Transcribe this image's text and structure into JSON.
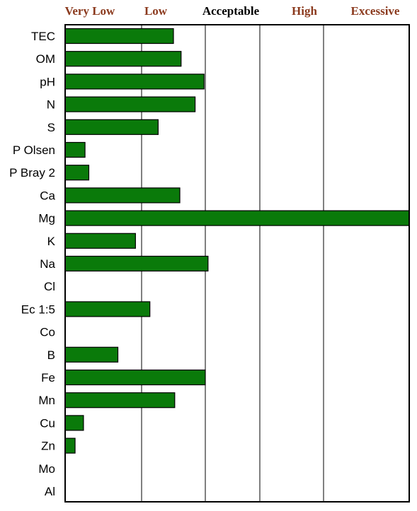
{
  "chart_data": {
    "type": "bar",
    "orientation": "horizontal",
    "zones": [
      {
        "label": "Very Low",
        "color": "#8B3A1E"
      },
      {
        "label": "Low",
        "color": "#8B3A1E"
      },
      {
        "label": "Acceptable",
        "color": "#000000"
      },
      {
        "label": "High",
        "color": "#8B3A1E"
      },
      {
        "label": "Excessive",
        "color": "#8B3A1E"
      }
    ],
    "zone_boundaries": [
      0,
      1.0,
      2.0,
      3.0,
      4.0,
      5.0
    ],
    "xlim": [
      0,
      5.2
    ],
    "categories": [
      "TEC",
      "OM",
      "pH",
      "N",
      "S",
      "P Olsen",
      "P Bray 2",
      "Ca",
      "Mg",
      "K",
      "Na",
      "Cl",
      "Ec 1:5",
      "Co",
      "B",
      "Fe",
      "Mn",
      "Cu",
      "Zn",
      "Mo",
      "Al"
    ],
    "values": [
      1.5,
      1.62,
      1.98,
      1.84,
      1.26,
      0.26,
      0.31,
      1.6,
      5.12,
      0.92,
      2.05,
      null,
      1.13,
      null,
      0.69,
      2.0,
      1.52,
      0.24,
      0.13,
      null,
      null
    ],
    "grid": true,
    "bar_color": "#0A7A0A",
    "title": "",
    "xlabel": "",
    "ylabel": ""
  }
}
